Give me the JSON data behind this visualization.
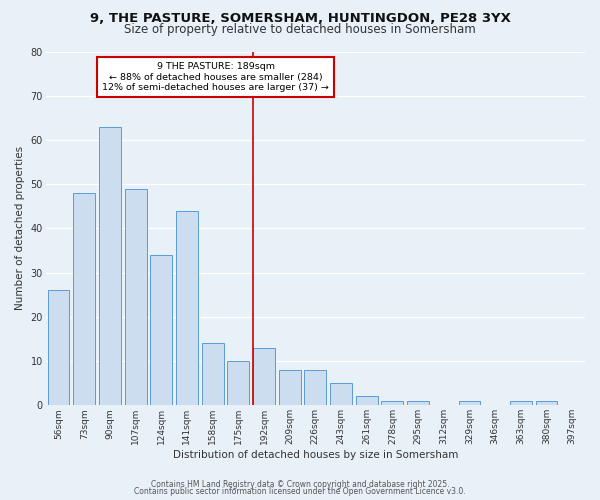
{
  "title": "9, THE PASTURE, SOMERSHAM, HUNTINGDON, PE28 3YX",
  "subtitle": "Size of property relative to detached houses in Somersham",
  "xlabel": "Distribution of detached houses by size in Somersham",
  "ylabel": "Number of detached properties",
  "bar_labels": [
    "56sqm",
    "73sqm",
    "90sqm",
    "107sqm",
    "124sqm",
    "141sqm",
    "158sqm",
    "175sqm",
    "192sqm",
    "209sqm",
    "226sqm",
    "243sqm",
    "261sqm",
    "278sqm",
    "295sqm",
    "312sqm",
    "329sqm",
    "346sqm",
    "363sqm",
    "380sqm",
    "397sqm"
  ],
  "bar_values": [
    26,
    48,
    63,
    49,
    34,
    44,
    14,
    10,
    13,
    8,
    8,
    5,
    2,
    1,
    1,
    0,
    1,
    0,
    1,
    1,
    0
  ],
  "bar_color": "#ccddf0",
  "bar_edge_color": "#5b9bd5",
  "vline_x_index": 8,
  "vline_color": "#cc0000",
  "annotation_title": "9 THE PASTURE: 189sqm",
  "annotation_line1": "← 88% of detached houses are smaller (284)",
  "annotation_line2": "12% of semi-detached houses are larger (37) →",
  "annotation_box_color": "#ffffff",
  "annotation_box_edge_color": "#cc0000",
  "ylim": [
    0,
    80
  ],
  "yticks": [
    0,
    10,
    20,
    30,
    40,
    50,
    60,
    70,
    80
  ],
  "footer1": "Contains HM Land Registry data © Crown copyright and database right 2025.",
  "footer2": "Contains public sector information licensed under the Open Government Licence v3.0.",
  "background_color": "#e8f0f8",
  "grid_color": "#ffffff",
  "title_fontsize": 9.5,
  "subtitle_fontsize": 8.5,
  "axis_label_fontsize": 7.5,
  "tick_fontsize": 6.5,
  "footer_fontsize": 5.5
}
